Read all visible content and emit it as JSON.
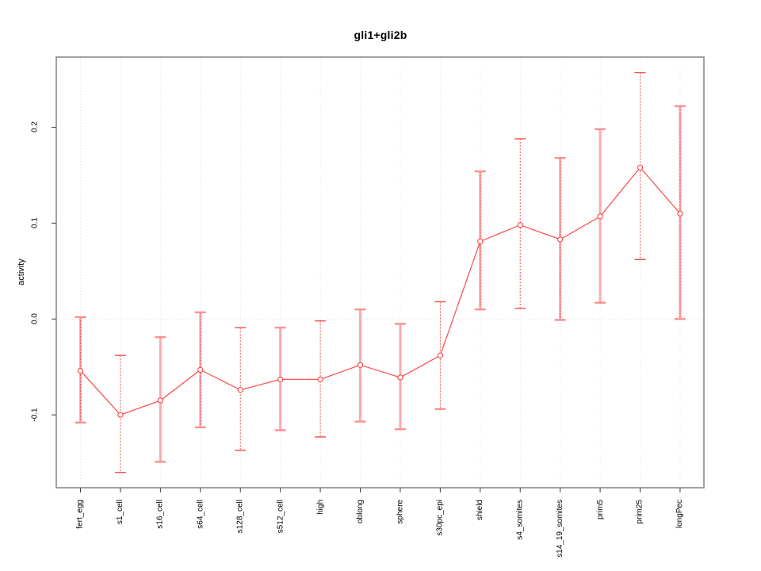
{
  "chart_data": {
    "type": "line",
    "title": "gli1+gli2b",
    "xlabel": "",
    "ylabel": "activity",
    "legend": "none",
    "grid": {
      "vertical": "dotted line at every category",
      "horizontal": "dotted line at y=0 only"
    },
    "yticks": {
      "values": [
        0.2,
        0.1,
        0.0,
        -0.1
      ],
      "labels": [
        "0.2",
        "0.1",
        "0.0",
        "-0.1"
      ]
    },
    "ylim": [
      -0.176,
      0.274
    ],
    "categories": [
      "fert_egg",
      "s1_cell",
      "s16_cell",
      "s64_cell",
      "s128_cell",
      "s512_cell",
      "high",
      "oblong",
      "sphere",
      "s30pc_epi",
      "shield",
      "s4_somites",
      "s14_19_somites",
      "prim5",
      "prim25",
      "longPec"
    ],
    "series": [
      {
        "name": "activity",
        "marker": "open-circle",
        "means": [
          -0.054,
          -0.1,
          -0.085,
          -0.053,
          -0.074,
          -0.063,
          -0.063,
          -0.048,
          -0.061,
          -0.038,
          0.081,
          0.098,
          0.083,
          0.107,
          0.158,
          0.11
        ],
        "err_low": [
          -0.108,
          -0.16,
          -0.149,
          -0.113,
          -0.137,
          -0.116,
          -0.123,
          -0.107,
          -0.115,
          -0.094,
          0.01,
          0.011,
          -0.001,
          0.017,
          0.062,
          0.0
        ],
        "err_high": [
          0.002,
          -0.038,
          -0.019,
          0.007,
          -0.009,
          -0.009,
          -0.002,
          0.01,
          -0.005,
          0.018,
          0.154,
          0.188,
          0.168,
          0.198,
          0.257,
          0.222
        ],
        "bar_styles": [
          "both",
          "dotted",
          "solid",
          "both",
          "dotted",
          "solid",
          "dotted",
          "solid",
          "solid",
          "dotted",
          "both",
          "dotted",
          "both",
          "solid",
          "dotted",
          "both"
        ]
      }
    ],
    "colors": {
      "line": "#ff5252",
      "marker_stroke": "#ff4545",
      "marker_fill": "#ffffff",
      "error_bar_pink": "#ffaaaa",
      "error_bar_cap": "#ff8f8f",
      "error_bar_dotted": "#f45050",
      "gridline": "#e2e2e2",
      "zero_line": "#dedede",
      "plot_border": "#8a8a8a",
      "axis_tick": "#404040",
      "text": "#000000"
    }
  }
}
